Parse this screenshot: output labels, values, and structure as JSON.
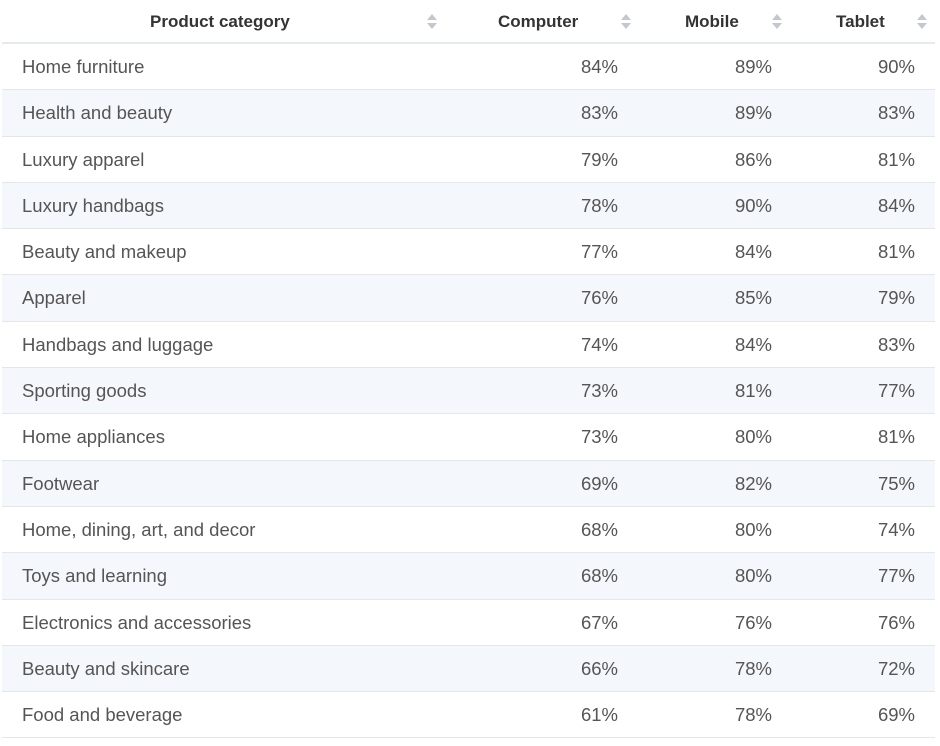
{
  "chart_data": {
    "type": "table",
    "columns": [
      "Product category",
      "Computer",
      "Mobile",
      "Tablet"
    ],
    "rows": [
      [
        "Home furniture",
        "84%",
        "89%",
        "90%"
      ],
      [
        "Health and beauty",
        "83%",
        "89%",
        "83%"
      ],
      [
        "Luxury apparel",
        "79%",
        "86%",
        "81%"
      ],
      [
        "Luxury handbags",
        "78%",
        "90%",
        "84%"
      ],
      [
        "Beauty and makeup",
        "77%",
        "84%",
        "81%"
      ],
      [
        "Apparel",
        "76%",
        "85%",
        "79%"
      ],
      [
        "Handbags and luggage",
        "74%",
        "84%",
        "83%"
      ],
      [
        "Sporting goods",
        "73%",
        "81%",
        "77%"
      ],
      [
        "Home appliances",
        "73%",
        "80%",
        "81%"
      ],
      [
        "Footwear",
        "69%",
        "82%",
        "75%"
      ],
      [
        "Home, dining, art, and decor",
        "68%",
        "80%",
        "74%"
      ],
      [
        "Toys and learning",
        "68%",
        "80%",
        "77%"
      ],
      [
        "Electronics and accessories",
        "67%",
        "76%",
        "76%"
      ],
      [
        "Beauty and skincare",
        "66%",
        "78%",
        "72%"
      ],
      [
        "Food and beverage",
        "61%",
        "78%",
        "69%"
      ]
    ]
  },
  "colors": {
    "header_text": "#333333",
    "body_text": "#555555",
    "row_stripe": "#f4f7fb",
    "divider": "#e3e7ec",
    "sort_icon": "#c4c8ce"
  },
  "icons": {
    "sort": "sort-arrows-icon"
  }
}
